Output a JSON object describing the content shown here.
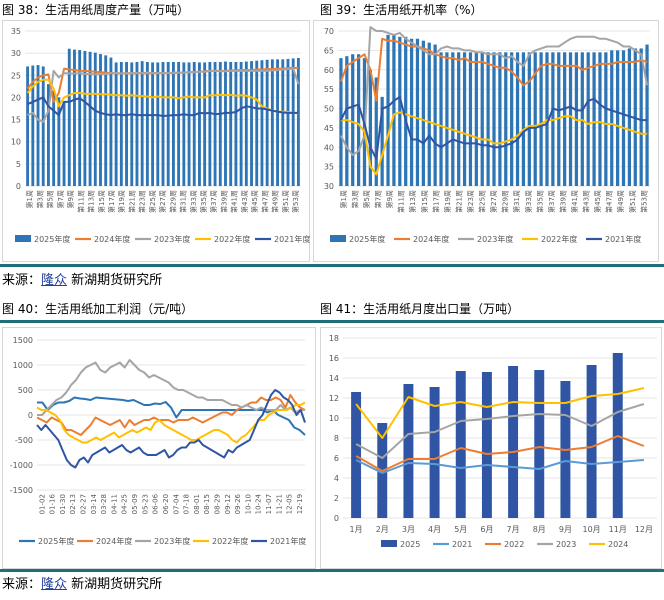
{
  "titles": {
    "c38": "图 38：生活用纸周度产量（万吨）",
    "c39": "图 39：生活用纸开机率（%）",
    "c40": "图 40：生活用纸加工利润（元/吨）",
    "c41": "图 41：生活用纸月度出口量（万吨）"
  },
  "source": {
    "prefix": "来源：",
    "brand": "隆众",
    "suffix": " 新湖期货研究所"
  },
  "colors": {
    "c2025": "#2e75b6",
    "c2024": "#ed7d31",
    "c2023": "#a5a5a5",
    "c2022": "#ffc000",
    "c2021": "#2f55a4",
    "dark": "#1e6f77"
  },
  "chart_data": [
    {
      "id": "c38",
      "type": "bar+line",
      "ylim": [
        0,
        35
      ],
      "yticks": [
        0,
        5,
        10,
        15,
        20,
        25,
        30,
        35
      ],
      "x_tick_labels": [
        "第1周",
        "第3周",
        "第5周",
        "第7周",
        "第9周",
        "第11周",
        "第13周",
        "第15周",
        "第17周",
        "第19周",
        "第21周",
        "第23周",
        "第25周",
        "第27周",
        "第29周",
        "第31周",
        "第33周",
        "第35周",
        "第37周",
        "第39周",
        "第41周",
        "第43周",
        "第45周",
        "第47周",
        "第49周",
        "第51周",
        "第53周"
      ],
      "x_count": 53,
      "bars": {
        "name": "2025年度",
        "values": [
          27,
          27.2,
          27.3,
          27,
          23,
          21.5,
          20,
          19,
          31,
          30.8,
          30.7,
          30.5,
          30.3,
          30.1,
          29.8,
          29.5,
          29,
          27.9,
          28,
          28,
          27.9,
          28,
          28.2,
          28,
          27.9,
          27.9,
          28,
          28,
          28,
          28,
          27.9,
          27.9,
          28,
          27.9,
          27.9,
          28,
          28,
          28,
          28.1,
          28,
          28,
          28,
          28.1,
          28.2,
          28.3,
          28.4,
          28.5,
          28.6,
          28.6,
          28.6,
          28.7,
          28.8,
          28.9
        ]
      },
      "series": [
        {
          "name": "2024年度",
          "values": [
            22,
            23.5,
            24.5,
            25,
            25.2,
            19,
            21,
            26.5,
            26.3,
            26.2,
            26,
            26,
            25.9,
            25.8,
            25.7,
            25.6,
            25.5,
            25.5,
            25.4,
            25.5,
            25.4,
            25.5,
            25.5,
            25.4,
            25.5,
            25.5,
            25.5,
            25.5,
            25.5,
            25.6,
            25.6,
            25.7,
            25.7,
            25.8,
            25.9,
            26,
            26,
            26,
            26,
            26.1,
            26.1,
            26.2,
            26.2,
            26.2,
            26.3,
            26.3,
            26.4,
            26.4,
            26.5,
            26.5,
            26.6,
            26.7,
            26.6
          ]
        },
        {
          "name": "2023年度",
          "values": [
            16,
            16.5,
            15,
            14.5,
            17,
            26,
            24.5,
            25.5,
            25.4,
            25.4,
            25.5,
            25.3,
            25.3,
            25.2,
            25.3,
            25.3,
            25.5,
            25.5,
            25.4,
            25.4,
            25.5,
            25.5,
            25.5,
            25.6,
            25.5,
            25.5,
            25.5,
            25.5,
            25.6,
            25.6,
            25.6,
            25.7,
            25.7,
            25.8,
            25.8,
            26,
            26,
            25.9,
            25.9,
            26,
            26,
            26,
            26,
            26,
            26,
            26,
            26,
            26.1,
            26.2,
            26.3,
            26.4,
            26.5,
            23
          ]
        },
        {
          "name": "2022年度",
          "values": [
            21,
            22.5,
            23.5,
            24,
            24,
            22,
            18,
            20,
            20.5,
            21,
            21,
            20.8,
            20.8,
            20.8,
            20.7,
            20.7,
            20.6,
            20.5,
            20.5,
            20.4,
            20.5,
            20.4,
            20.3,
            20.2,
            20,
            20.2,
            20,
            20,
            20,
            19.8,
            20,
            20.2,
            20,
            20,
            20,
            20.5,
            20.5,
            20.6,
            20.5,
            20.6,
            20.4,
            20.5,
            20.4,
            20,
            19.5,
            18,
            17.5,
            17,
            16.8,
            16.8,
            16.7,
            16.5,
            16.4
          ]
        },
        {
          "name": "2021年度",
          "values": [
            18.5,
            19,
            19.5,
            20,
            18,
            17,
            16,
            19,
            19,
            19.5,
            19.8,
            19,
            18,
            17,
            16.5,
            16.2,
            16,
            16.2,
            16,
            16,
            16.2,
            16,
            16,
            16,
            16,
            16,
            15.8,
            15.9,
            16,
            16,
            16.2,
            16,
            16,
            16.5,
            16.4,
            16.5,
            16.2,
            16.3,
            16.5,
            16.5,
            16.7,
            17.5,
            18,
            17.8,
            17.5,
            17.5,
            17.3,
            17,
            16.8,
            16.6,
            16.5,
            16.5,
            16.5
          ]
        }
      ]
    },
    {
      "id": "c39",
      "type": "bar+line",
      "ylim": [
        30,
        70
      ],
      "yticks": [
        30,
        35,
        40,
        45,
        50,
        55,
        60,
        65,
        70
      ],
      "x_tick_labels": [
        "第1周",
        "第3周",
        "第5周",
        "第7周",
        "第9周",
        "第11周",
        "第13周",
        "第15周",
        "第17周",
        "第19周",
        "第21周",
        "第23周",
        "第25周",
        "第27周",
        "第29周",
        "第31周",
        "第33周",
        "第35周",
        "第37周",
        "第39周",
        "第41周",
        "第43周",
        "第45周",
        "第47周",
        "第49周",
        "第51周",
        "第53周"
      ],
      "x_count": 53,
      "bars": {
        "name": "2025年度",
        "values": [
          63,
          63.5,
          64,
          64,
          63,
          60,
          58,
          53,
          69,
          69,
          68.5,
          68.5,
          68,
          68,
          67.5,
          67,
          66.5,
          64.5,
          64.5,
          64.5,
          64.5,
          64.5,
          64.5,
          64.5,
          64.5,
          64.5,
          64.5,
          64.5,
          64.5,
          64.5,
          64.5,
          64.5,
          64.5,
          64.5,
          64.5,
          64.5,
          64.5,
          64.5,
          64.5,
          64.5,
          64.5,
          64.5,
          64.5,
          64.5,
          64.5,
          64.5,
          65,
          65,
          65,
          65.5,
          65.5,
          65.5,
          66.5
        ]
      },
      "series": [
        {
          "name": "2024年度",
          "values": [
            57,
            61,
            62,
            63,
            64,
            60,
            52,
            68,
            67.5,
            67.5,
            67,
            66.5,
            66,
            66,
            65.5,
            65,
            64,
            63.5,
            63,
            63,
            62.5,
            63,
            62,
            62,
            62,
            61.5,
            61,
            60.5,
            60.5,
            59.5,
            58,
            56,
            57,
            59,
            61,
            61.5,
            61.5,
            61,
            61,
            61,
            61,
            60,
            60.5,
            61,
            61.5,
            61.5,
            61.5,
            62,
            62,
            62,
            62,
            62.5,
            62
          ]
        },
        {
          "name": "2023年度",
          "values": [
            43,
            40,
            38,
            39,
            43,
            71,
            70,
            70,
            69.5,
            69,
            69.5,
            68,
            67,
            66,
            65,
            64,
            64,
            65.5,
            66,
            65.5,
            65.5,
            65,
            65,
            64.5,
            64.5,
            64,
            64,
            64,
            63,
            63.5,
            62,
            61,
            64,
            65,
            65.5,
            66,
            66,
            66,
            67,
            68,
            68.5,
            68.5,
            68.5,
            68.5,
            68,
            68,
            67.5,
            67,
            66,
            66,
            65,
            64,
            56
          ]
        },
        {
          "name": "2022年度",
          "values": [
            47,
            47,
            46.5,
            46,
            44,
            35,
            33,
            38,
            43,
            48.5,
            49,
            48.5,
            48,
            47.5,
            47,
            46.5,
            46,
            45.5,
            45,
            44.5,
            44,
            43.5,
            43,
            42.5,
            42,
            42,
            41,
            41,
            41.5,
            42,
            43,
            44.5,
            45.5,
            45.5,
            46,
            47,
            47,
            47.5,
            48,
            48,
            47,
            47,
            46,
            46.5,
            46.5,
            46,
            46,
            45.5,
            45,
            44.5,
            44,
            43.5,
            43.5
          ]
        },
        {
          "name": "2021年度",
          "values": [
            47,
            50,
            50.5,
            51,
            46,
            40,
            37,
            50,
            50.5,
            52,
            53,
            47,
            42,
            42,
            41,
            43,
            41,
            40,
            41,
            42,
            41.5,
            41,
            41,
            41,
            40.5,
            40.5,
            40,
            40,
            40.5,
            41,
            42,
            44,
            45,
            45,
            45.5,
            46,
            50,
            49.5,
            50,
            50.5,
            49.5,
            49.5,
            52,
            52.5,
            51,
            50,
            49.5,
            49,
            48.5,
            48,
            47.5,
            47,
            47
          ]
        }
      ]
    },
    {
      "id": "c40",
      "type": "line",
      "ylim": [
        -1500,
        1500
      ],
      "yticks": [
        -1500,
        -1000,
        -500,
        0,
        500,
        1000,
        1500
      ],
      "x_tick_labels": [
        "01-02",
        "01-16",
        "01-30",
        "02-13",
        "02-27",
        "03-14",
        "03-28",
        "04-11",
        "04-25",
        "05-09",
        "05-23",
        "06-06",
        "06-20",
        "07-04",
        "07-18",
        "08-01",
        "08-15",
        "08-29",
        "09-12",
        "09-26",
        "10-10",
        "10-24",
        "11-07",
        "11-21",
        "12-05",
        "12-19"
      ],
      "series": [
        {
          "name": "2025年度",
          "values": [
            250,
            250,
            100,
            200,
            250,
            250,
            280,
            350,
            330,
            320,
            300,
            350,
            340,
            330,
            320,
            310,
            300,
            280,
            300,
            250,
            200,
            200,
            230,
            220,
            260,
            150,
            -50,
            100,
            100,
            100,
            100,
            100,
            100,
            100,
            100,
            100,
            100,
            100,
            100,
            100,
            100,
            100,
            100,
            50,
            100,
            0,
            -50,
            -100,
            -250,
            -300,
            -400
          ]
        },
        {
          "name": "2024年度",
          "values": [
            -50,
            -100,
            -150,
            -50,
            -100,
            -150,
            -300,
            -300,
            -350,
            -400,
            -300,
            -200,
            -50,
            -100,
            -150,
            -200,
            -150,
            -100,
            -250,
            -100,
            -200,
            -150,
            -100,
            -100,
            -50,
            -100,
            -100,
            -100,
            -150,
            -100,
            -100,
            -100,
            -50,
            -100,
            -150,
            -100,
            -50,
            0,
            50,
            50,
            0,
            100,
            150,
            200,
            250,
            250,
            350,
            300,
            300,
            350,
            300,
            150,
            400,
            250,
            150,
            100
          ]
        },
        {
          "name": "2023年度",
          "values": [
            0,
            0,
            100,
            200,
            300,
            350,
            450,
            600,
            700,
            850,
            950,
            1000,
            1050,
            900,
            850,
            950,
            1000,
            1050,
            950,
            1100,
            1000,
            900,
            850,
            750,
            800,
            750,
            700,
            650,
            550,
            500,
            500,
            450,
            400,
            350,
            350,
            300,
            300,
            300,
            300,
            250,
            200,
            200,
            150,
            200,
            150,
            100,
            150,
            100,
            100,
            100,
            200,
            100,
            150,
            50,
            100,
            100
          ]
        },
        {
          "name": "2022年度",
          "values": [
            150,
            100,
            100,
            50,
            0,
            -100,
            -300,
            -400,
            -450,
            -500,
            -550,
            -550,
            -500,
            -450,
            -500,
            -450,
            -400,
            -350,
            -450,
            -400,
            -350,
            -300,
            -350,
            -300,
            -250,
            -300,
            -150,
            -100,
            -200,
            -250,
            -300,
            -350,
            -400,
            -450,
            -500,
            -500,
            -450,
            -400,
            -350,
            -300,
            -300,
            -350,
            -400,
            -500,
            -550,
            -450,
            -400,
            -300,
            -200,
            -100,
            -100,
            0,
            50,
            100,
            100,
            100,
            150,
            200,
            200,
            250
          ]
        },
        {
          "name": "2021年度",
          "values": [
            -200,
            -300,
            -200,
            -300,
            -400,
            -500,
            -700,
            -900,
            -1000,
            -1050,
            -900,
            -850,
            -950,
            -800,
            -750,
            -700,
            -650,
            -750,
            -700,
            -650,
            -600,
            -700,
            -750,
            -700,
            -650,
            -750,
            -800,
            -800,
            -800,
            -750,
            -700,
            -850,
            -800,
            -700,
            -650,
            -650,
            -550,
            -550,
            -500,
            -600,
            -650,
            -700,
            -750,
            -800,
            -850,
            -700,
            -750,
            -650,
            -600,
            -550,
            -500,
            -300,
            -100,
            0,
            200,
            400,
            500,
            450,
            350,
            300,
            200,
            0,
            100,
            -150
          ]
        }
      ]
    },
    {
      "id": "c41",
      "type": "bar+line",
      "ylim": [
        0,
        18
      ],
      "yticks": [
        0,
        2,
        4,
        6,
        8,
        10,
        12,
        14,
        16,
        18
      ],
      "categories": [
        "1月",
        "2月",
        "3月",
        "4月",
        "5月",
        "6月",
        "7月",
        "8月",
        "9月",
        "10月",
        "11月",
        "12月"
      ],
      "bars": {
        "name": "2025",
        "values": [
          12.6,
          9.5,
          13.4,
          13.1,
          14.7,
          14.6,
          15.2,
          14.8,
          13.7,
          15.3,
          16.5
        ]
      },
      "series": [
        {
          "name": "2021",
          "values": [
            5.8,
            4.5,
            5.5,
            5.4,
            5.0,
            5.3,
            5.1,
            4.9,
            5.7,
            5.4,
            5.6,
            5.8
          ]
        },
        {
          "name": "2022",
          "values": [
            6.2,
            4.7,
            5.9,
            5.9,
            7.0,
            6.4,
            6.6,
            7.1,
            6.8,
            7.1,
            8.2,
            7.2
          ]
        },
        {
          "name": "2023",
          "values": [
            7.4,
            6.0,
            8.4,
            8.6,
            9.7,
            9.9,
            10.2,
            10.4,
            10.3,
            9.2,
            10.6,
            11.4
          ]
        },
        {
          "name": "2024",
          "values": [
            11.4,
            8.0,
            12.1,
            11.2,
            11.6,
            11.1,
            11.6,
            11.5,
            11.5,
            12.2,
            12.4,
            13.0
          ]
        }
      ]
    }
  ]
}
